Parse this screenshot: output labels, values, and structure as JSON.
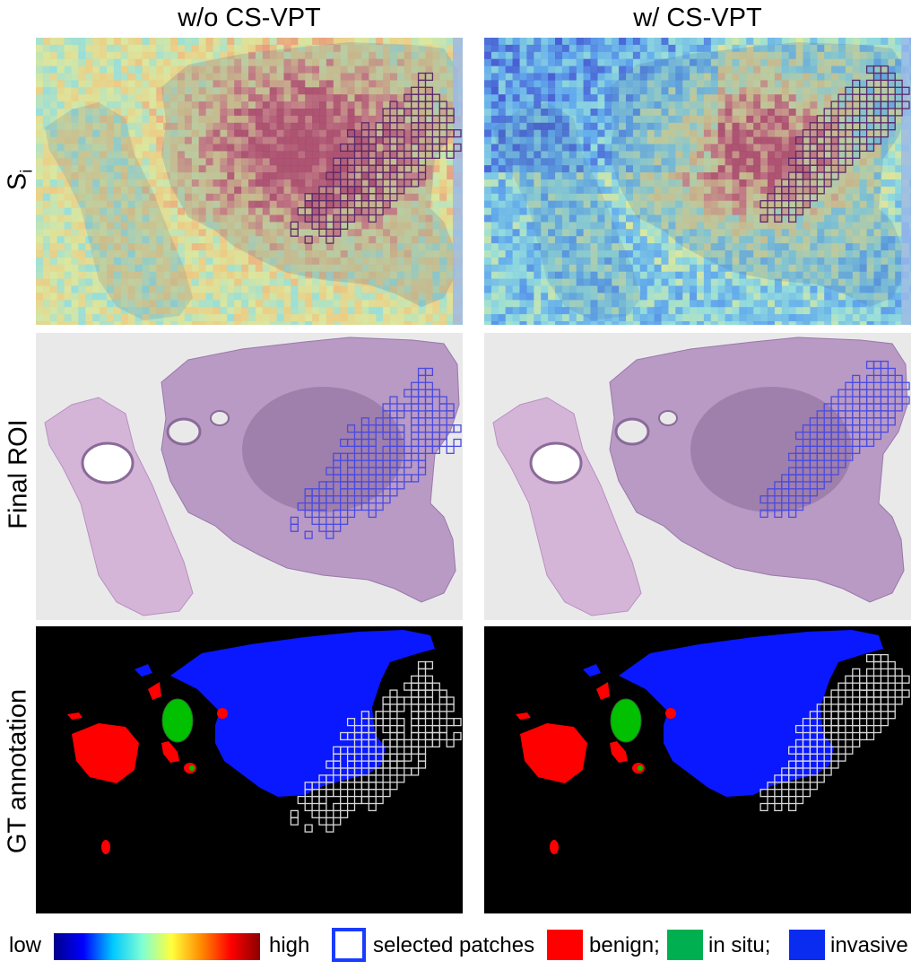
{
  "columns": [
    "w/o  CS-VPT",
    "w/  CS-VPT"
  ],
  "rows": {
    "si_base": "S",
    "si_sub": "i",
    "roi": "Final ROI",
    "gt": "GT annotation"
  },
  "legend": {
    "low": "low",
    "high": "high",
    "selected": "selected patches",
    "benign": "benign;",
    "in_situ": "in situ;",
    "invasive": "invasive"
  },
  "colors": {
    "benign": "#ff0000",
    "in_situ": "#00c000",
    "invasive": "#0a18ff",
    "selected_box": "#1a3cff",
    "roi_box": "#4a4ae0",
    "gt_box": "#d9d9d9"
  },
  "patches": {
    "without": [
      [
        54,
        5
      ],
      [
        55,
        5
      ],
      [
        54,
        6
      ],
      [
        53,
        7
      ],
      [
        55,
        7
      ],
      [
        52,
        8
      ],
      [
        53,
        8
      ],
      [
        54,
        8
      ],
      [
        55,
        8
      ],
      [
        56,
        8
      ],
      [
        50,
        9
      ],
      [
        53,
        9
      ],
      [
        54,
        9
      ],
      [
        55,
        9
      ],
      [
        57,
        9
      ],
      [
        49,
        10
      ],
      [
        51,
        10
      ],
      [
        52,
        10
      ],
      [
        53,
        10
      ],
      [
        55,
        10
      ],
      [
        57,
        10
      ],
      [
        58,
        10
      ],
      [
        49,
        11
      ],
      [
        50,
        11
      ],
      [
        51,
        11
      ],
      [
        53,
        11
      ],
      [
        54,
        11
      ],
      [
        55,
        11
      ],
      [
        56,
        11
      ],
      [
        58,
        11
      ],
      [
        46,
        12
      ],
      [
        48,
        12
      ],
      [
        50,
        12
      ],
      [
        53,
        12
      ],
      [
        54,
        12
      ],
      [
        55,
        12
      ],
      [
        57,
        12
      ],
      [
        44,
        13
      ],
      [
        46,
        13
      ],
      [
        47,
        13
      ],
      [
        48,
        13
      ],
      [
        49,
        13
      ],
      [
        51,
        13
      ],
      [
        53,
        13
      ],
      [
        54,
        13
      ],
      [
        56,
        13
      ],
      [
        58,
        13
      ],
      [
        59,
        13
      ],
      [
        45,
        14
      ],
      [
        46,
        14
      ],
      [
        47,
        14
      ],
      [
        49,
        14
      ],
      [
        50,
        14
      ],
      [
        51,
        14
      ],
      [
        53,
        14
      ],
      [
        55,
        14
      ],
      [
        56,
        14
      ],
      [
        57,
        14
      ],
      [
        43,
        15
      ],
      [
        44,
        15
      ],
      [
        45,
        15
      ],
      [
        46,
        15
      ],
      [
        47,
        15
      ],
      [
        50,
        15
      ],
      [
        51,
        15
      ],
      [
        53,
        15
      ],
      [
        54,
        15
      ],
      [
        55,
        15
      ],
      [
        56,
        15
      ],
      [
        57,
        15
      ],
      [
        59,
        15
      ],
      [
        45,
        16
      ],
      [
        46,
        16
      ],
      [
        47,
        16
      ],
      [
        49,
        16
      ],
      [
        50,
        16
      ],
      [
        51,
        16
      ],
      [
        52,
        16
      ],
      [
        53,
        16
      ],
      [
        55,
        16
      ],
      [
        56,
        16
      ],
      [
        58,
        16
      ],
      [
        42,
        17
      ],
      [
        43,
        17
      ],
      [
        44,
        17
      ],
      [
        46,
        17
      ],
      [
        47,
        17
      ],
      [
        48,
        17
      ],
      [
        50,
        17
      ],
      [
        52,
        17
      ],
      [
        53,
        17
      ],
      [
        54,
        17
      ],
      [
        42,
        18
      ],
      [
        44,
        18
      ],
      [
        45,
        18
      ],
      [
        47,
        18
      ],
      [
        48,
        18
      ],
      [
        49,
        18
      ],
      [
        50,
        18
      ],
      [
        51,
        18
      ],
      [
        52,
        18
      ],
      [
        54,
        18
      ],
      [
        41,
        19
      ],
      [
        42,
        19
      ],
      [
        44,
        19
      ],
      [
        46,
        19
      ],
      [
        47,
        19
      ],
      [
        48,
        19
      ],
      [
        49,
        19
      ],
      [
        50,
        19
      ],
      [
        51,
        19
      ],
      [
        54,
        19
      ],
      [
        42,
        20
      ],
      [
        43,
        20
      ],
      [
        44,
        20
      ],
      [
        45,
        20
      ],
      [
        47,
        20
      ],
      [
        48,
        20
      ],
      [
        50,
        20
      ],
      [
        52,
        20
      ],
      [
        53,
        20
      ],
      [
        40,
        21
      ],
      [
        41,
        21
      ],
      [
        43,
        21
      ],
      [
        44,
        21
      ],
      [
        45,
        21
      ],
      [
        46,
        21
      ],
      [
        47,
        21
      ],
      [
        49,
        21
      ],
      [
        51,
        21
      ],
      [
        38,
        22
      ],
      [
        39,
        22
      ],
      [
        41,
        22
      ],
      [
        43,
        22
      ],
      [
        45,
        22
      ],
      [
        46,
        22
      ],
      [
        47,
        22
      ],
      [
        48,
        22
      ],
      [
        50,
        22
      ],
      [
        38,
        23
      ],
      [
        39,
        23
      ],
      [
        40,
        23
      ],
      [
        41,
        23
      ],
      [
        42,
        23
      ],
      [
        44,
        23
      ],
      [
        46,
        23
      ],
      [
        47,
        23
      ],
      [
        49,
        23
      ],
      [
        37,
        24
      ],
      [
        39,
        24
      ],
      [
        40,
        24
      ],
      [
        43,
        24
      ],
      [
        45,
        24
      ],
      [
        46,
        24
      ],
      [
        48,
        24
      ],
      [
        38,
        25
      ],
      [
        40,
        25
      ],
      [
        42,
        25
      ],
      [
        44,
        25
      ],
      [
        47,
        25
      ],
      [
        36,
        26
      ],
      [
        39,
        26
      ],
      [
        41,
        26
      ],
      [
        43,
        26
      ],
      [
        36,
        27
      ],
      [
        40,
        27
      ],
      [
        42,
        27
      ],
      [
        38,
        28
      ],
      [
        41,
        28
      ]
    ],
    "with": [
      [
        54,
        4
      ],
      [
        55,
        4
      ],
      [
        56,
        4
      ],
      [
        55,
        5
      ],
      [
        57,
        5
      ],
      [
        52,
        6
      ],
      [
        54,
        6
      ],
      [
        56,
        6
      ],
      [
        58,
        6
      ],
      [
        51,
        7
      ],
      [
        53,
        7
      ],
      [
        55,
        7
      ],
      [
        57,
        7
      ],
      [
        59,
        7
      ],
      [
        50,
        8
      ],
      [
        52,
        8
      ],
      [
        53,
        8
      ],
      [
        54,
        8
      ],
      [
        55,
        8
      ],
      [
        56,
        8
      ],
      [
        58,
        8
      ],
      [
        49,
        9
      ],
      [
        51,
        9
      ],
      [
        53,
        9
      ],
      [
        54,
        9
      ],
      [
        55,
        9
      ],
      [
        56,
        9
      ],
      [
        57,
        9
      ],
      [
        59,
        9
      ],
      [
        48,
        10
      ],
      [
        50,
        10
      ],
      [
        52,
        10
      ],
      [
        53,
        10
      ],
      [
        54,
        10
      ],
      [
        55,
        10
      ],
      [
        56,
        10
      ],
      [
        58,
        10
      ],
      [
        47,
        11
      ],
      [
        49,
        11
      ],
      [
        50,
        11
      ],
      [
        51,
        11
      ],
      [
        52,
        11
      ],
      [
        54,
        11
      ],
      [
        55,
        11
      ],
      [
        56,
        11
      ],
      [
        57,
        11
      ],
      [
        46,
        12
      ],
      [
        48,
        12
      ],
      [
        49,
        12
      ],
      [
        50,
        12
      ],
      [
        51,
        12
      ],
      [
        52,
        12
      ],
      [
        53,
        12
      ],
      [
        55,
        12
      ],
      [
        57,
        12
      ],
      [
        45,
        13
      ],
      [
        47,
        13
      ],
      [
        48,
        13
      ],
      [
        49,
        13
      ],
      [
        50,
        13
      ],
      [
        51,
        13
      ],
      [
        52,
        13
      ],
      [
        54,
        13
      ],
      [
        56,
        13
      ],
      [
        44,
        14
      ],
      [
        46,
        14
      ],
      [
        47,
        14
      ],
      [
        48,
        14
      ],
      [
        49,
        14
      ],
      [
        50,
        14
      ],
      [
        52,
        14
      ],
      [
        53,
        14
      ],
      [
        55,
        14
      ],
      [
        45,
        15
      ],
      [
        46,
        15
      ],
      [
        47,
        15
      ],
      [
        48,
        15
      ],
      [
        49,
        15
      ],
      [
        51,
        15
      ],
      [
        53,
        15
      ],
      [
        54,
        15
      ],
      [
        44,
        16
      ],
      [
        45,
        16
      ],
      [
        46,
        16
      ],
      [
        47,
        16
      ],
      [
        48,
        16
      ],
      [
        50,
        16
      ],
      [
        52,
        16
      ],
      [
        43,
        17
      ],
      [
        44,
        17
      ],
      [
        45,
        17
      ],
      [
        46,
        17
      ],
      [
        47,
        17
      ],
      [
        49,
        17
      ],
      [
        51,
        17
      ],
      [
        44,
        18
      ],
      [
        45,
        18
      ],
      [
        46,
        18
      ],
      [
        48,
        18
      ],
      [
        50,
        18
      ],
      [
        43,
        19
      ],
      [
        44,
        19
      ],
      [
        45,
        19
      ],
      [
        47,
        19
      ],
      [
        49,
        19
      ],
      [
        42,
        20
      ],
      [
        43,
        20
      ],
      [
        44,
        20
      ],
      [
        46,
        20
      ],
      [
        48,
        20
      ],
      [
        41,
        21
      ],
      [
        42,
        21
      ],
      [
        43,
        21
      ],
      [
        45,
        21
      ],
      [
        47,
        21
      ],
      [
        40,
        22
      ],
      [
        42,
        22
      ],
      [
        44,
        22
      ],
      [
        46,
        22
      ],
      [
        39,
        23
      ],
      [
        41,
        23
      ],
      [
        43,
        23
      ],
      [
        45,
        23
      ],
      [
        40,
        24
      ],
      [
        42,
        24
      ],
      [
        44,
        24
      ],
      [
        39,
        25
      ],
      [
        41,
        25
      ],
      [
        43,
        25
      ]
    ]
  }
}
